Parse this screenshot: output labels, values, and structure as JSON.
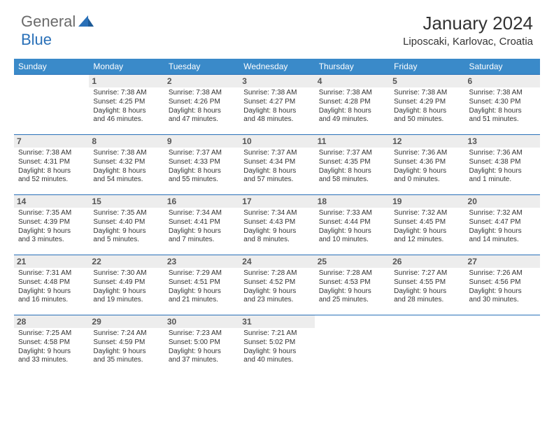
{
  "brand": {
    "part1": "General",
    "part2": "Blue"
  },
  "title": "January 2024",
  "location": "Liposcaki, Karlovac, Croatia",
  "colors": {
    "header_bg": "#3a8ac9",
    "accent": "#2970b8",
    "daynum_bg": "#ededed",
    "text": "#333333"
  },
  "dayNames": [
    "Sunday",
    "Monday",
    "Tuesday",
    "Wednesday",
    "Thursday",
    "Friday",
    "Saturday"
  ],
  "weeks": [
    [
      null,
      {
        "n": "1",
        "sr": "Sunrise: 7:38 AM",
        "ss": "Sunset: 4:25 PM",
        "d1": "Daylight: 8 hours",
        "d2": "and 46 minutes."
      },
      {
        "n": "2",
        "sr": "Sunrise: 7:38 AM",
        "ss": "Sunset: 4:26 PM",
        "d1": "Daylight: 8 hours",
        "d2": "and 47 minutes."
      },
      {
        "n": "3",
        "sr": "Sunrise: 7:38 AM",
        "ss": "Sunset: 4:27 PM",
        "d1": "Daylight: 8 hours",
        "d2": "and 48 minutes."
      },
      {
        "n": "4",
        "sr": "Sunrise: 7:38 AM",
        "ss": "Sunset: 4:28 PM",
        "d1": "Daylight: 8 hours",
        "d2": "and 49 minutes."
      },
      {
        "n": "5",
        "sr": "Sunrise: 7:38 AM",
        "ss": "Sunset: 4:29 PM",
        "d1": "Daylight: 8 hours",
        "d2": "and 50 minutes."
      },
      {
        "n": "6",
        "sr": "Sunrise: 7:38 AM",
        "ss": "Sunset: 4:30 PM",
        "d1": "Daylight: 8 hours",
        "d2": "and 51 minutes."
      }
    ],
    [
      {
        "n": "7",
        "sr": "Sunrise: 7:38 AM",
        "ss": "Sunset: 4:31 PM",
        "d1": "Daylight: 8 hours",
        "d2": "and 52 minutes."
      },
      {
        "n": "8",
        "sr": "Sunrise: 7:38 AM",
        "ss": "Sunset: 4:32 PM",
        "d1": "Daylight: 8 hours",
        "d2": "and 54 minutes."
      },
      {
        "n": "9",
        "sr": "Sunrise: 7:37 AM",
        "ss": "Sunset: 4:33 PM",
        "d1": "Daylight: 8 hours",
        "d2": "and 55 minutes."
      },
      {
        "n": "10",
        "sr": "Sunrise: 7:37 AM",
        "ss": "Sunset: 4:34 PM",
        "d1": "Daylight: 8 hours",
        "d2": "and 57 minutes."
      },
      {
        "n": "11",
        "sr": "Sunrise: 7:37 AM",
        "ss": "Sunset: 4:35 PM",
        "d1": "Daylight: 8 hours",
        "d2": "and 58 minutes."
      },
      {
        "n": "12",
        "sr": "Sunrise: 7:36 AM",
        "ss": "Sunset: 4:36 PM",
        "d1": "Daylight: 9 hours",
        "d2": "and 0 minutes."
      },
      {
        "n": "13",
        "sr": "Sunrise: 7:36 AM",
        "ss": "Sunset: 4:38 PM",
        "d1": "Daylight: 9 hours",
        "d2": "and 1 minute."
      }
    ],
    [
      {
        "n": "14",
        "sr": "Sunrise: 7:35 AM",
        "ss": "Sunset: 4:39 PM",
        "d1": "Daylight: 9 hours",
        "d2": "and 3 minutes."
      },
      {
        "n": "15",
        "sr": "Sunrise: 7:35 AM",
        "ss": "Sunset: 4:40 PM",
        "d1": "Daylight: 9 hours",
        "d2": "and 5 minutes."
      },
      {
        "n": "16",
        "sr": "Sunrise: 7:34 AM",
        "ss": "Sunset: 4:41 PM",
        "d1": "Daylight: 9 hours",
        "d2": "and 7 minutes."
      },
      {
        "n": "17",
        "sr": "Sunrise: 7:34 AM",
        "ss": "Sunset: 4:43 PM",
        "d1": "Daylight: 9 hours",
        "d2": "and 8 minutes."
      },
      {
        "n": "18",
        "sr": "Sunrise: 7:33 AM",
        "ss": "Sunset: 4:44 PM",
        "d1": "Daylight: 9 hours",
        "d2": "and 10 minutes."
      },
      {
        "n": "19",
        "sr": "Sunrise: 7:32 AM",
        "ss": "Sunset: 4:45 PM",
        "d1": "Daylight: 9 hours",
        "d2": "and 12 minutes."
      },
      {
        "n": "20",
        "sr": "Sunrise: 7:32 AM",
        "ss": "Sunset: 4:47 PM",
        "d1": "Daylight: 9 hours",
        "d2": "and 14 minutes."
      }
    ],
    [
      {
        "n": "21",
        "sr": "Sunrise: 7:31 AM",
        "ss": "Sunset: 4:48 PM",
        "d1": "Daylight: 9 hours",
        "d2": "and 16 minutes."
      },
      {
        "n": "22",
        "sr": "Sunrise: 7:30 AM",
        "ss": "Sunset: 4:49 PM",
        "d1": "Daylight: 9 hours",
        "d2": "and 19 minutes."
      },
      {
        "n": "23",
        "sr": "Sunrise: 7:29 AM",
        "ss": "Sunset: 4:51 PM",
        "d1": "Daylight: 9 hours",
        "d2": "and 21 minutes."
      },
      {
        "n": "24",
        "sr": "Sunrise: 7:28 AM",
        "ss": "Sunset: 4:52 PM",
        "d1": "Daylight: 9 hours",
        "d2": "and 23 minutes."
      },
      {
        "n": "25",
        "sr": "Sunrise: 7:28 AM",
        "ss": "Sunset: 4:53 PM",
        "d1": "Daylight: 9 hours",
        "d2": "and 25 minutes."
      },
      {
        "n": "26",
        "sr": "Sunrise: 7:27 AM",
        "ss": "Sunset: 4:55 PM",
        "d1": "Daylight: 9 hours",
        "d2": "and 28 minutes."
      },
      {
        "n": "27",
        "sr": "Sunrise: 7:26 AM",
        "ss": "Sunset: 4:56 PM",
        "d1": "Daylight: 9 hours",
        "d2": "and 30 minutes."
      }
    ],
    [
      {
        "n": "28",
        "sr": "Sunrise: 7:25 AM",
        "ss": "Sunset: 4:58 PM",
        "d1": "Daylight: 9 hours",
        "d2": "and 33 minutes."
      },
      {
        "n": "29",
        "sr": "Sunrise: 7:24 AM",
        "ss": "Sunset: 4:59 PM",
        "d1": "Daylight: 9 hours",
        "d2": "and 35 minutes."
      },
      {
        "n": "30",
        "sr": "Sunrise: 7:23 AM",
        "ss": "Sunset: 5:00 PM",
        "d1": "Daylight: 9 hours",
        "d2": "and 37 minutes."
      },
      {
        "n": "31",
        "sr": "Sunrise: 7:21 AM",
        "ss": "Sunset: 5:02 PM",
        "d1": "Daylight: 9 hours",
        "d2": "and 40 minutes."
      },
      null,
      null,
      null
    ]
  ]
}
